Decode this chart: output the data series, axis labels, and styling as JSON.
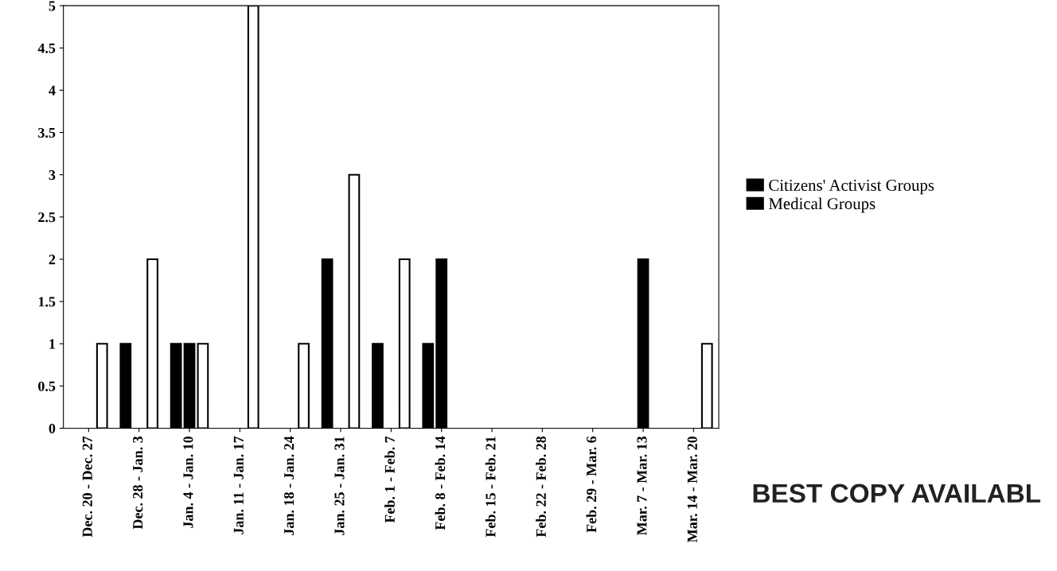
{
  "chart_data": {
    "type": "bar",
    "categories": [
      "Dec. 20 - Dec. 27",
      "Dec. 28 - Jan. 3",
      "Jan. 4 - Jan. 10",
      "Jan. 11 - Jan. 17",
      "Jan. 18 - Jan. 24",
      "Jan. 25 - Jan. 31",
      "Feb. 1 - Feb. 7",
      "Feb. 8 - Feb. 14",
      "Feb. 15 - Feb. 21",
      "Feb. 22 - Feb. 28",
      "Feb. 29 - Mar. 6",
      "Mar. 7 - Mar. 13",
      "Mar. 14 - Mar. 20"
    ],
    "series": [
      {
        "name": "Citizens' Activist Groups",
        "color": "#000000",
        "values": [
          0,
          1,
          1,
          0,
          0,
          2,
          1,
          1,
          0,
          0,
          0,
          0,
          0
        ]
      },
      {
        "name": "Medical Groups",
        "color": "#000000",
        "values": [
          0,
          0,
          1,
          0,
          0,
          0,
          0,
          2,
          0,
          0,
          0,
          2,
          0
        ]
      },
      {
        "color": "#ffffff",
        "values": [
          1,
          2,
          1,
          5,
          1,
          3,
          2,
          0,
          0,
          0,
          0,
          0,
          1
        ]
      }
    ],
    "ylim": [
      0,
      5
    ],
    "yticks": [
      0,
      0.5,
      1,
      1.5,
      2,
      2.5,
      3,
      3.5,
      4,
      4.5,
      5
    ],
    "grid": false,
    "legend": "right",
    "annotations": [
      "BEST COPY AVAILABL"
    ]
  }
}
